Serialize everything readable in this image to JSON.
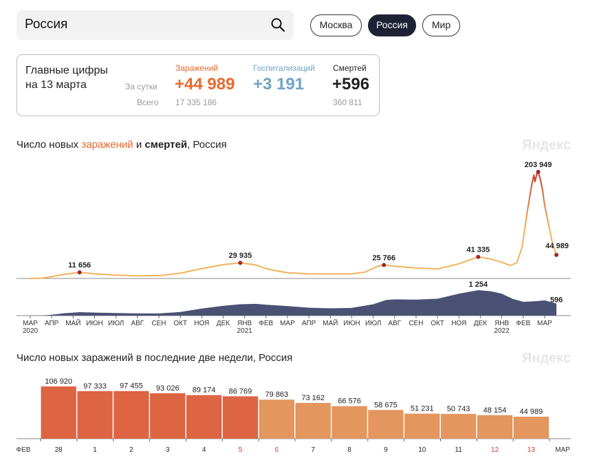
{
  "search": {
    "value": "Россия"
  },
  "regions": [
    {
      "label": "Москва",
      "active": false
    },
    {
      "label": "Россия",
      "active": true
    },
    {
      "label": "Мир",
      "active": false
    }
  ],
  "summary": {
    "title_line1": "Главные цифры",
    "title_line2": "на 13 марта",
    "row_day": "За сутки",
    "row_total": "Всего",
    "infections": {
      "label": "Заражений",
      "day": "+44 989",
      "total": "17 335 186",
      "color": "#e86a2e"
    },
    "hospital": {
      "label": "Госпитализаций",
      "day": "+3 191",
      "total": "",
      "color": "#6fa3c4"
    },
    "deaths": {
      "label": "Смертей",
      "day": "+596",
      "total": "360 811",
      "color": "#222222"
    }
  },
  "chart1": {
    "title_pre": "Число новых ",
    "title_inf": "заражений",
    "title_mid": " и ",
    "title_deaths": "смертей",
    "title_post": ", Россия",
    "brand": "Яндекс"
  },
  "chart2": {
    "title": "Число новых заражений в последние две недели, Россия",
    "brand": "Яндекс"
  },
  "chart_data": [
    {
      "type": "line",
      "title": "Число новых заражений и смертей, Россия",
      "x_ticks": [
        "МАР",
        "АПР",
        "МАЙ",
        "ИЮН",
        "ИЮЛ",
        "АВГ",
        "СЕН",
        "ОКТ",
        "НОЯ",
        "ДЕК",
        "ЯНВ",
        "ФЕВ",
        "МАР",
        "АПР",
        "МАЙ",
        "ИЮН",
        "ИЮЛ",
        "АВГ",
        "СЕН",
        "ОКТ",
        "НОЯ",
        "ДЕК",
        "ЯНВ",
        "ФЕВ",
        "МАР"
      ],
      "year_labels": [
        {
          "tick": 0,
          "label": "2020"
        },
        {
          "tick": 10,
          "label": "2021"
        },
        {
          "tick": 22,
          "label": "2022"
        }
      ],
      "series": [
        {
          "name": "заражений",
          "color_low": "#f2b25c",
          "color_high": "#c23a2b",
          "points": [
            [
              0,
              0
            ],
            [
              0.5,
              400
            ],
            [
              1,
              3500
            ],
            [
              1.6,
              8000
            ],
            [
              2.3,
              11656
            ],
            [
              3,
              9000
            ],
            [
              4,
              6500
            ],
            [
              5,
              5000
            ],
            [
              6,
              5400
            ],
            [
              7,
              10000
            ],
            [
              8,
              19000
            ],
            [
              9,
              26500
            ],
            [
              9.8,
              29935
            ],
            [
              10.5,
              26000
            ],
            [
              11,
              19000
            ],
            [
              11.5,
              14500
            ],
            [
              12,
              11000
            ],
            [
              13,
              9000
            ],
            [
              14,
              8500
            ],
            [
              15,
              9000
            ],
            [
              15.6,
              12000
            ],
            [
              16.2,
              23000
            ],
            [
              16.5,
              25766
            ],
            [
              17,
              23500
            ],
            [
              18,
              20000
            ],
            [
              19,
              18000
            ],
            [
              20,
              28000
            ],
            [
              20.9,
              41335
            ],
            [
              21.5,
              37000
            ],
            [
              22,
              31000
            ],
            [
              22.4,
              25000
            ],
            [
              22.7,
              30000
            ],
            [
              22.95,
              60000
            ],
            [
              23.2,
              130000
            ],
            [
              23.4,
              180000
            ],
            [
              23.5,
              198000
            ],
            [
              23.55,
              185000
            ],
            [
              23.65,
              202000
            ],
            [
              23.7,
              203949
            ],
            [
              23.8,
              190000
            ],
            [
              23.9,
              170000
            ],
            [
              24,
              140000
            ],
            [
              24.2,
              100000
            ],
            [
              24.35,
              70000
            ],
            [
              24.55,
              44989
            ]
          ],
          "annotations": [
            {
              "x": 2.3,
              "value": 11656,
              "label": "11 656"
            },
            {
              "x": 9.8,
              "value": 29935,
              "label": "29 935"
            },
            {
              "x": 16.5,
              "value": 25766,
              "label": "25 766"
            },
            {
              "x": 20.9,
              "value": 41335,
              "label": "41 335"
            },
            {
              "x": 23.7,
              "value": 203949,
              "label": "203 949"
            },
            {
              "x": 24.55,
              "value": 44989,
              "label": "44 989"
            }
          ]
        },
        {
          "name": "смертей",
          "type": "area",
          "color": "#4a5174",
          "points": [
            [
              0,
              0
            ],
            [
              0.5,
              5
            ],
            [
              1,
              40
            ],
            [
              1.6,
              120
            ],
            [
              2.3,
              170
            ],
            [
              3,
              150
            ],
            [
              4,
              130
            ],
            [
              5,
              110
            ],
            [
              6,
              105
            ],
            [
              7,
              180
            ],
            [
              8,
              350
            ],
            [
              9,
              480
            ],
            [
              9.8,
              560
            ],
            [
              10.5,
              580
            ],
            [
              11,
              540
            ],
            [
              12,
              470
            ],
            [
              13,
              390
            ],
            [
              14,
              360
            ],
            [
              15,
              380
            ],
            [
              16,
              560
            ],
            [
              16.6,
              770
            ],
            [
              17,
              800
            ],
            [
              18,
              790
            ],
            [
              19,
              830
            ],
            [
              20,
              1080
            ],
            [
              20.9,
              1254
            ],
            [
              21.5,
              1200
            ],
            [
              22,
              1080
            ],
            [
              22.5,
              830
            ],
            [
              23,
              680
            ],
            [
              23.5,
              700
            ],
            [
              24,
              750
            ],
            [
              24.55,
              596
            ]
          ],
          "annotations": [
            {
              "x": 20.9,
              "value": 1254,
              "label": "1 254"
            },
            {
              "x": 24.55,
              "value": 596,
              "label": "596"
            }
          ]
        }
      ]
    },
    {
      "type": "bar",
      "title": "Число новых заражений в последние две недели, Россия",
      "categories": [
        "28",
        "1",
        "2",
        "3",
        "4",
        "5",
        "6",
        "7",
        "8",
        "9",
        "10",
        "11",
        "12",
        "13"
      ],
      "values": [
        106920,
        97333,
        97455,
        93026,
        89174,
        86769,
        79863,
        73162,
        66576,
        58675,
        51231,
        50743,
        48154,
        44989
      ],
      "value_labels": [
        "106 920",
        "97 333",
        "97 455",
        "93 026",
        "89 174",
        "86 769",
        "79 863",
        "73 162",
        "66 576",
        "58 675",
        "51 231",
        "50 743",
        "48 154",
        "44 989"
      ],
      "weekend": [
        false,
        false,
        false,
        false,
        false,
        true,
        true,
        false,
        false,
        false,
        false,
        false,
        true,
        true
      ],
      "month_left": "ФЕВ",
      "month_right": "МАР",
      "colors": {
        "first_week": "#dd6543",
        "second_week": "#e3965e",
        "weekend_label": "#d9392b",
        "normal_label": "#222222"
      }
    }
  ]
}
